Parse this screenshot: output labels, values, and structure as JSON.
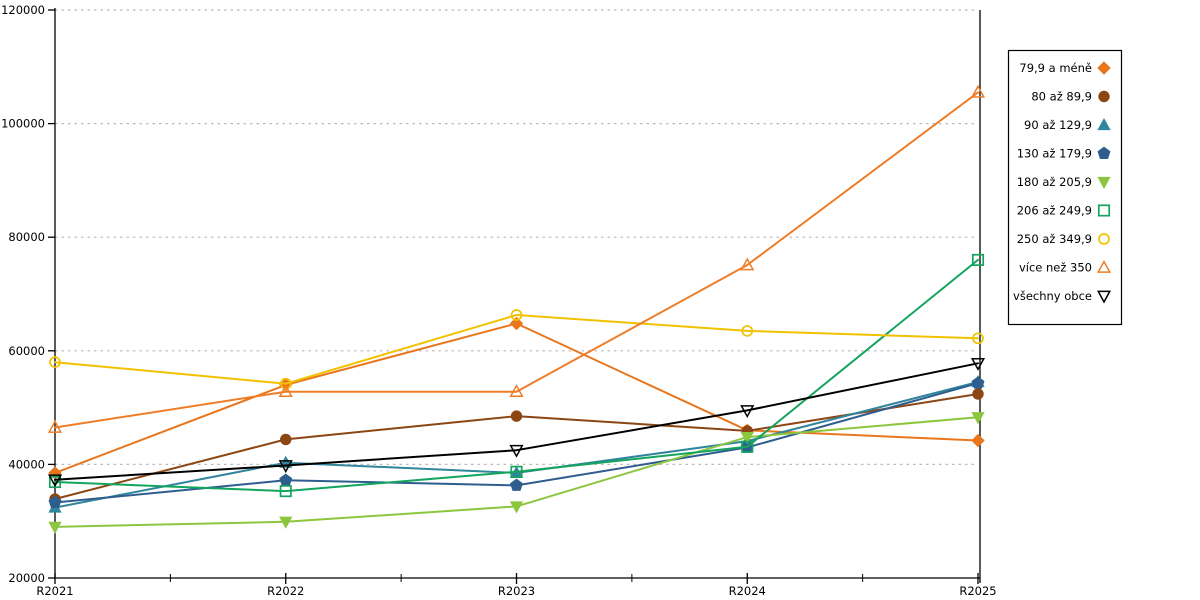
{
  "chart_data": {
    "type": "line",
    "title": "",
    "xlabel": "",
    "ylabel": "",
    "x": [
      "R2021",
      "R2022",
      "R2023",
      "R2024",
      "R2025"
    ],
    "ylim": [
      20000,
      120000
    ],
    "ytick_interval": 20000,
    "yticks": [
      20000,
      40000,
      60000,
      80000,
      100000,
      120000
    ],
    "grid": "horizontal dashed gray at 40000-120000",
    "legend_position": "right",
    "axis_color": "#000000",
    "grid_color": "#b9b9b9",
    "series": [
      {
        "name": "79,9 a méně",
        "marker": "diamond-filled",
        "color": "#e8761d",
        "values": [
          38500,
          54000,
          64800,
          46000,
          44200
        ]
      },
      {
        "name": "80 až 89,9",
        "marker": "circle-filled",
        "color": "#8c4613",
        "values": [
          33900,
          44400,
          48500,
          45900,
          52400
        ]
      },
      {
        "name": "90 až 129,9",
        "marker": "triangle-up-filled",
        "color": "#31859c",
        "values": [
          32400,
          40300,
          38500,
          44100,
          54500
        ]
      },
      {
        "name": "130 až 179,9",
        "marker": "pentagon-filled",
        "color": "#2e5e8e",
        "values": [
          33300,
          37200,
          36300,
          43000,
          54300
        ]
      },
      {
        "name": "180 až 205,9",
        "marker": "triangle-down-filled",
        "color": "#8cc63f",
        "values": [
          29000,
          29900,
          32600,
          44800,
          48300
        ]
      },
      {
        "name": "206 až 249,9",
        "marker": "square-open",
        "color": "#13a45e",
        "values": [
          36900,
          35300,
          38700,
          43100,
          76000
        ]
      },
      {
        "name": "250 až 349,9",
        "marker": "circle-open",
        "color": "#f2c100",
        "values": [
          58000,
          54200,
          66300,
          63500,
          62200
        ]
      },
      {
        "name": "více než 350",
        "marker": "triangle-up-open",
        "color": "#ef7d28",
        "values": [
          46500,
          52800,
          52800,
          75100,
          105500
        ]
      },
      {
        "name": "všechny obce",
        "marker": "triangle-down-open",
        "color": "#000000",
        "values": [
          37300,
          39800,
          42500,
          49500,
          57800
        ]
      }
    ]
  },
  "layout_labels": {
    "y_axis_name": "y-axis",
    "x_axis_name": "x-axis",
    "legend_name": "legend"
  }
}
